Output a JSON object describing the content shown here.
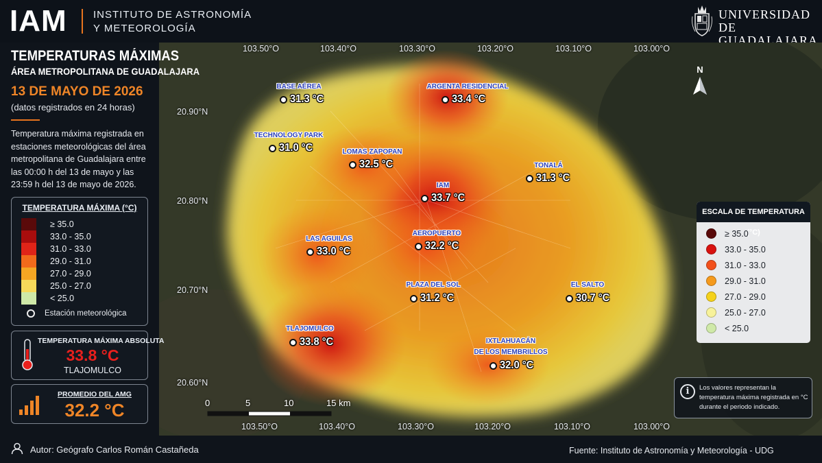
{
  "header": {
    "logo": "IAM",
    "institute_line1": "INSTITUTO DE ASTRONOMÍA",
    "institute_line2": "Y METEOROLOGÍA",
    "university_line1": "UNIVERSIDAD DE",
    "university_line2": "GUADALAJARA"
  },
  "left": {
    "title": "TEMPERATURAS MÁXIMAS",
    "subtitle": "ÁREA METROPOLITANA DE GUADALAJARA",
    "date": "13 DE MAYO DE 2026",
    "date_note": "(datos registrados en 24 horas)",
    "description": "Temperatura máxima registrada en estaciones meteorológicas del área metropolitana de Guadalajara entre las 00:00 h del 13 de mayo y las 23:59 h del 13 de mayo de 2026."
  },
  "legend": {
    "title": "TEMPERATURA MÁXIMA (°C)",
    "classes": [
      {
        "label": "≥ 35.0",
        "color": "#5a0a0a"
      },
      {
        "label": "33.0 - 35.0",
        "color": "#a80d0d"
      },
      {
        "label": "31.0 - 33.0",
        "color": "#e02418"
      },
      {
        "label": "29.0 - 31.0",
        "color": "#f26a1b"
      },
      {
        "label": "27.0 - 29.0",
        "color": "#f5a623"
      },
      {
        "label": "25.0 - 27.0",
        "color": "#f7d95a"
      },
      {
        "label": "< 25.0",
        "color": "#cfe9a8"
      }
    ],
    "station_label": "Estación meteorológica"
  },
  "absolute_max": {
    "title": "TEMPERATURA MÁXIMA ABSOLUTA",
    "value": "33.8 °C",
    "place": "TLAJOMULCO"
  },
  "average": {
    "title": "PROMEDIO DEL AMG",
    "value": "32.2 °C"
  },
  "footer": {
    "author": "Autor: Geógrafo Carlos Román Castañeda",
    "source": "Fuente: Instituto de Astronomía y Meteorología - UDG"
  },
  "map": {
    "north": "N",
    "lon_labels": [
      "103.50°O",
      "103.40°O",
      "103.30°O",
      "103.20°O",
      "103.10°O",
      "103.00°O"
    ],
    "lat_labels": [
      "20.90°N",
      "20.80°N",
      "20.70°N",
      "20.60°N"
    ],
    "scalebar": [
      "0",
      "5",
      "10",
      "15 km"
    ],
    "stations": [
      {
        "name": "BASE AÉREA",
        "value": "31.3 °C",
        "temp": 31.3
      },
      {
        "name": "ARGENTA RESIDENCIAL",
        "value": "33.4 °C",
        "temp": 33.4
      },
      {
        "name": "TECHNOLOGY PARK",
        "value": "31.0 °C",
        "temp": 31.0
      },
      {
        "name": "LOMAS ZAPOPAN",
        "value": "32.5 °C",
        "temp": 32.5
      },
      {
        "name": "TONALÁ",
        "value": "31.3 °C",
        "temp": 31.3
      },
      {
        "name": "IAM",
        "value": "33.7 °C",
        "temp": 33.7
      },
      {
        "name": "LAS AGUILAS",
        "value": "33.0 °C",
        "temp": 33.0
      },
      {
        "name": "AEROPUERTO",
        "value": "32.2 °C",
        "temp": 32.2
      },
      {
        "name": "PLAZA DEL SOL",
        "value": "31.2 °C",
        "temp": 31.2
      },
      {
        "name": "EL SALTO",
        "value": "30.7 °C",
        "temp": 30.7
      },
      {
        "name": "TLAJOMULCO",
        "value": "33.8 °C",
        "temp": 33.8
      },
      {
        "name": "IXTLAHUACÁN",
        "name2": "DE LOS MEMBRILLOS",
        "value": "32.0 °C",
        "temp": 32.0
      }
    ]
  },
  "scale_box": {
    "title": "ESCALA DE TEMPERATURA (°C)",
    "classes": [
      {
        "label": "≥ 35.0",
        "color": "#5a0a0a"
      },
      {
        "label": "33.0 - 35.0",
        "color": "#d8120f"
      },
      {
        "label": "31.0 - 33.0",
        "color": "#f2501b"
      },
      {
        "label": "29.0 - 31.0",
        "color": "#f59a1d"
      },
      {
        "label": "27.0 - 29.0",
        "color": "#f5d21b"
      },
      {
        "label": "25.0 - 27.0",
        "color": "#f7f29a"
      },
      {
        "label": "< 25.0",
        "color": "#cfe9a8"
      }
    ]
  },
  "info": {
    "icon": "info-icon",
    "text": "Los valores representan la temperatura máxima registrada en °C durante el periodo indicado."
  }
}
